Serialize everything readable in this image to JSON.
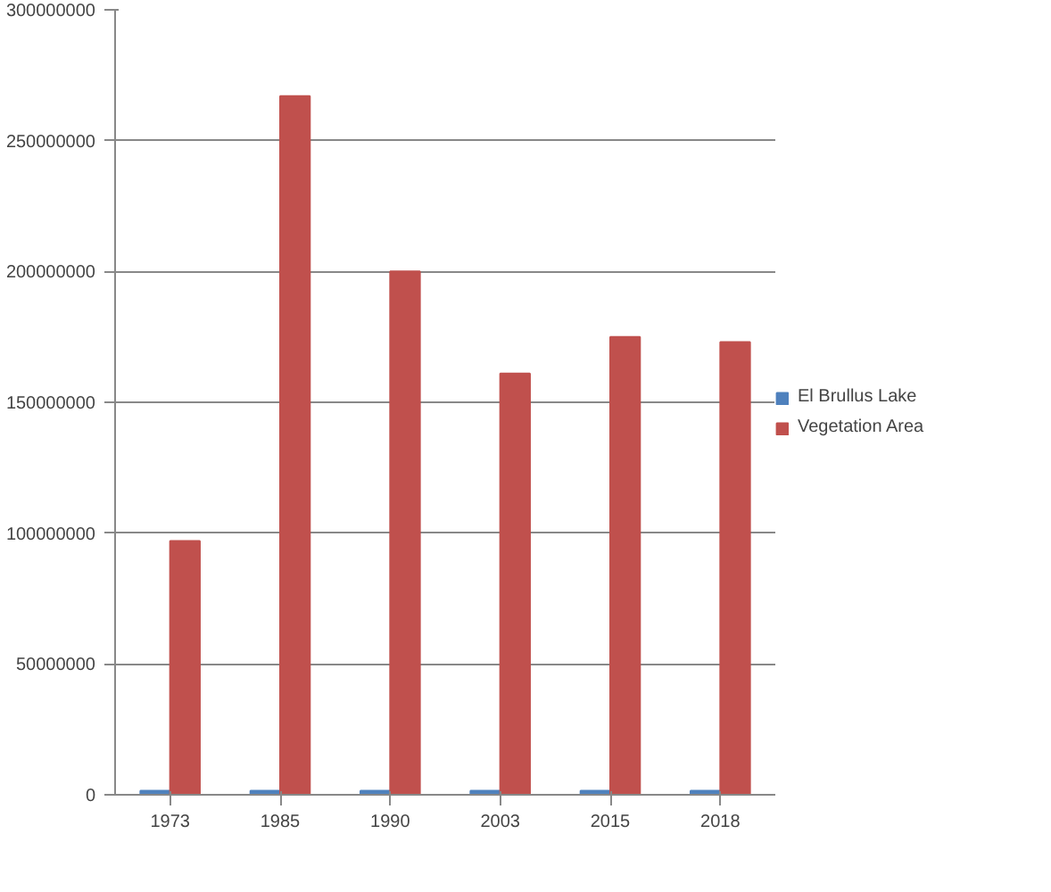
{
  "chart_data": {
    "type": "bar",
    "categories": [
      "1973",
      "1985",
      "1990",
      "2003",
      "2015",
      "2018"
    ],
    "series": [
      {
        "name": "El Brullus Lake",
        "color": "#4f81bd",
        "values": [
          1500000,
          1500000,
          1500000,
          1500000,
          1500000,
          1500000
        ]
      },
      {
        "name": "Vegetation Area",
        "color": "#c0504d",
        "values": [
          97000000,
          267000000,
          200000000,
          161000000,
          175000000,
          173000000
        ]
      }
    ],
    "ylim": [
      0,
      300000000
    ],
    "yticks": [
      0,
      50000000,
      100000000,
      150000000,
      200000000,
      250000000,
      300000000
    ],
    "grid": "y",
    "legend": "right"
  }
}
